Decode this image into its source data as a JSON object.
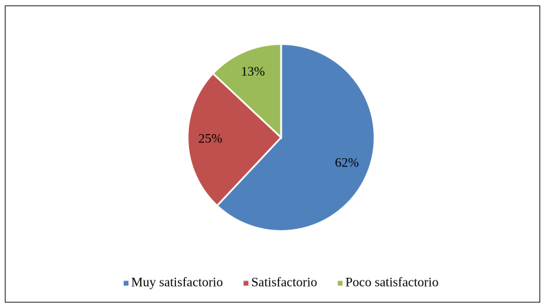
{
  "chart_data": {
    "type": "pie",
    "categories": [
      "Muy satisfactorio",
      "Satisfactorio",
      "Poco satisfactorio"
    ],
    "values": [
      62,
      25,
      13
    ],
    "value_labels": [
      "62%",
      "25%",
      "13%"
    ],
    "colors": [
      "#4f81bd",
      "#c0504d",
      "#9bbb59"
    ],
    "legend": "bottom"
  }
}
